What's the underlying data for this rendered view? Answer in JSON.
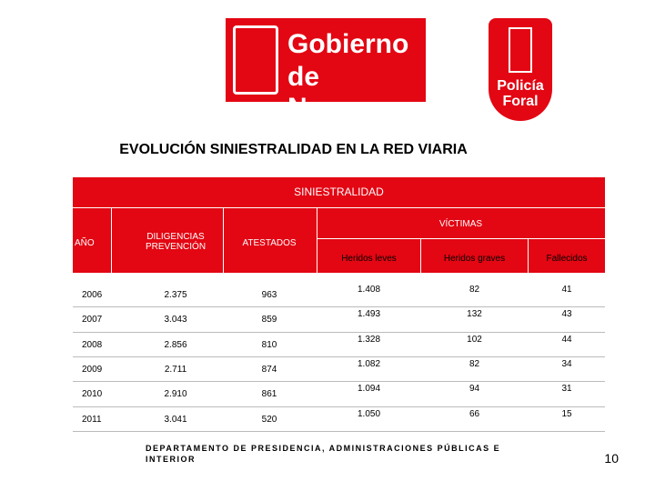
{
  "logos": {
    "gobierno": [
      "Gobierno",
      "de Navarra"
    ],
    "policia": [
      "Policía",
      "Foral"
    ]
  },
  "title": "EVOLUCIÓN SINIESTRALIDAD EN LA RED VIARIA",
  "table": {
    "group_header": "SINIESTRALIDAD",
    "victims_header": "VÍCTIMAS",
    "columns": [
      "AÑO",
      "DILIGENCIAS PREVENCIÓN",
      "ATESTADOS",
      "Heridos leves",
      "Heridos graves",
      "Fallecidos"
    ],
    "rows": [
      [
        "2006",
        "2.375",
        "963",
        "1.408",
        "82",
        "41"
      ],
      [
        "2007",
        "3.043",
        "859",
        "1.493",
        "132",
        "43"
      ],
      [
        "2008",
        "2.856",
        "810",
        "1.328",
        "102",
        "44"
      ],
      [
        "2009",
        "2.711",
        "874",
        "1.082",
        "82",
        "34"
      ],
      [
        "2010",
        "2.910",
        "861",
        "1.094",
        "94",
        "31"
      ],
      [
        "2011",
        "3.041",
        "520",
        "1.050",
        "66",
        "15"
      ]
    ]
  },
  "footer": "DEPARTAMENTO DE PRESIDENCIA, ADMINISTRACIONES PÚBLICAS E INTERIOR",
  "page_number": "10"
}
